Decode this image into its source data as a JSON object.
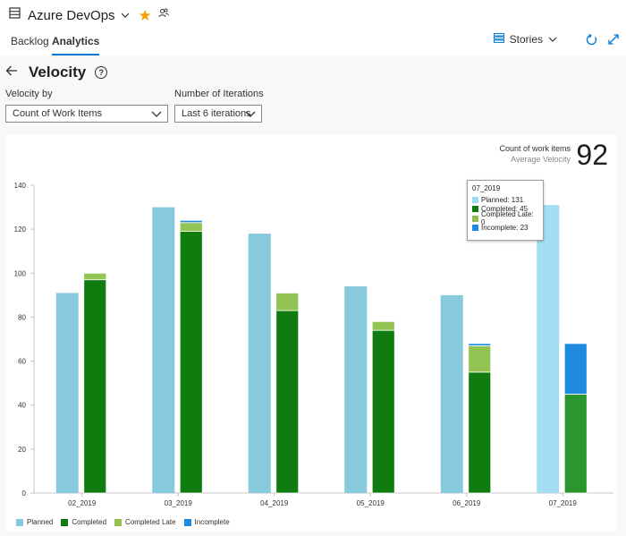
{
  "app": {
    "title": "Azure DevOps",
    "icon": "board-icon"
  },
  "tabs": [
    {
      "label": "Backlog",
      "active": false
    },
    {
      "label": "Analytics",
      "active": true
    }
  ],
  "toolbar": {
    "stories_label": "Stories",
    "refresh_icon": "refresh-icon",
    "expand_icon": "expand-icon"
  },
  "page": {
    "title": "Velocity"
  },
  "filters": {
    "velocity_by_label": "Velocity by",
    "velocity_by_value": "Count of Work Items",
    "iterations_label": "Number of Iterations",
    "iterations_value": "Last 6 iterations"
  },
  "kpi": {
    "label": "Count of work items",
    "sublabel": "Average Velocity",
    "value": "92"
  },
  "tooltip": {
    "title": "07_2019",
    "rows": [
      {
        "label": "Planned: 131",
        "color": "#9ad9ee"
      },
      {
        "label": "Completed: 45",
        "color": "#107c10"
      },
      {
        "label": "Completed Late: 0",
        "color": "#8cc152"
      },
      {
        "label": "Incomplete: 23",
        "color": "#1e88e5"
      }
    ]
  },
  "colors": {
    "planned": "#87cadd",
    "planned_highlight": "#a3def2",
    "completed": "#107c10",
    "completed_highlight": "#2b962d",
    "completed_late": "#92c353",
    "incomplete": "#1e8be0"
  },
  "chart_data": {
    "type": "bar",
    "categories": [
      "02_2019",
      "03_2019",
      "04_2019",
      "05_2019",
      "06_2019",
      "07_2019"
    ],
    "ylim": [
      0,
      140
    ],
    "yticks": [
      0,
      20,
      40,
      60,
      80,
      100,
      120,
      140
    ],
    "grid": false,
    "legend_position": "bottom-left",
    "series": [
      {
        "name": "Planned",
        "values": [
          91,
          130,
          118,
          94,
          90,
          131
        ]
      },
      {
        "name": "Completed",
        "values": [
          97,
          119,
          83,
          74,
          55,
          45
        ]
      },
      {
        "name": "Completed Late",
        "values": [
          3,
          4,
          8,
          4,
          12,
          0
        ]
      },
      {
        "name": "Incomplete",
        "values": [
          0,
          1,
          0,
          0,
          1,
          23
        ]
      }
    ],
    "highlighted_category": "07_2019"
  }
}
